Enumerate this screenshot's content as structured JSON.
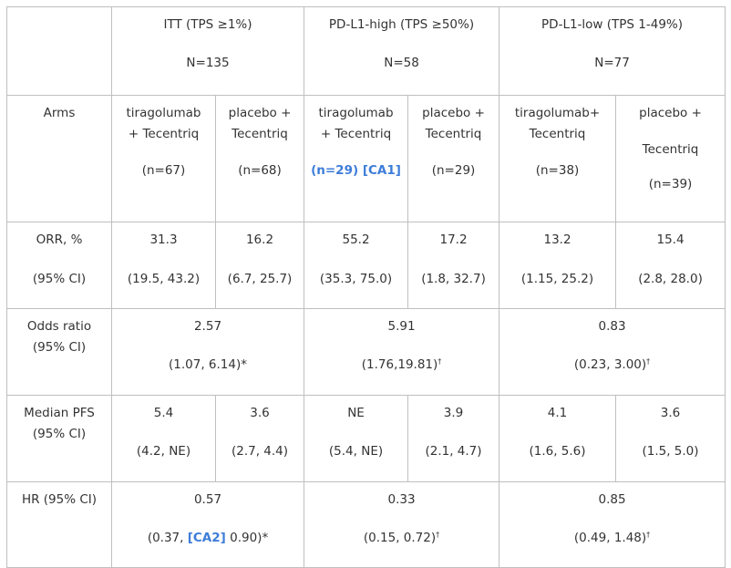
{
  "header": {
    "itt": {
      "label": "ITT (TPS ≥1%)",
      "n": "N=135"
    },
    "high": {
      "label": "PD-L1-high (TPS ≥50%)",
      "n": "N=58"
    },
    "low": {
      "label": "PD-L1-low (TPS 1-49%)",
      "n": "N=77"
    }
  },
  "arms": {
    "label": "Arms",
    "itt_tira": {
      "l1": "tiragolumab",
      "l2": "+ Tecentriq",
      "n": "(n=67)"
    },
    "itt_plac": {
      "l1": "placebo +",
      "l2": "Tecentriq",
      "n": "(n=68)"
    },
    "high_tira": {
      "l1": "tiragolumab",
      "l2": "+ Tecentriq",
      "n": "(n=29)",
      "ref": "[CA1]"
    },
    "high_plac": {
      "l1": "placebo +",
      "l2": "Tecentriq",
      "n": "(n=29)"
    },
    "low_tira": {
      "l1": "tiragolumab+",
      "l2": "Tecentriq",
      "n": "(n=38)"
    },
    "low_plac": {
      "l1": "placebo +",
      "l2": "Tecentriq",
      "n": "(n=39)"
    }
  },
  "orr": {
    "label1": "ORR, %",
    "label2": "(95% CI)",
    "values": [
      "31.3",
      "16.2",
      "55.2",
      "17.2",
      "13.2",
      "15.4"
    ],
    "cis": [
      "(19.5, 43.2)",
      "(6.7, 25.7)",
      "(35.3, 75.0)",
      "(1.8, 32.7)",
      "(1.15, 25.2)",
      "(2.8, 28.0)"
    ]
  },
  "odds": {
    "label1": "Odds ratio",
    "label2": "(95% CI)",
    "itt": {
      "value": "2.57",
      "ci": "(1.07, 6.14)*"
    },
    "high": {
      "value": "5.91",
      "ci": "(1.76,19.81)",
      "mark": "†"
    },
    "low": {
      "value": "0.83",
      "ci": "(0.23, 3.00)",
      "mark": "†"
    }
  },
  "pfs": {
    "label1": "Median PFS",
    "label2": "(95% CI)",
    "values": [
      "5.4",
      "3.6",
      "NE",
      "3.9",
      "4.1",
      "3.6"
    ],
    "cis": [
      "(4.2, NE)",
      "(2.7, 4.4)",
      "(5.4, NE)",
      "(2.1, 4.7)",
      "(1.6, 5.6)",
      "(1.5, 5.0)"
    ]
  },
  "hr": {
    "label": "HR (95% CI)",
    "itt": {
      "value": "0.57",
      "ci_a": "(0.37, ",
      "ref": "[CA2]",
      "ci_b": " 0.90)*"
    },
    "high": {
      "value": "0.33",
      "ci": "(0.15, 0.72)",
      "mark": "†"
    },
    "low": {
      "value": "0.85",
      "ci": "(0.49, 1.48)",
      "mark": "†"
    }
  }
}
